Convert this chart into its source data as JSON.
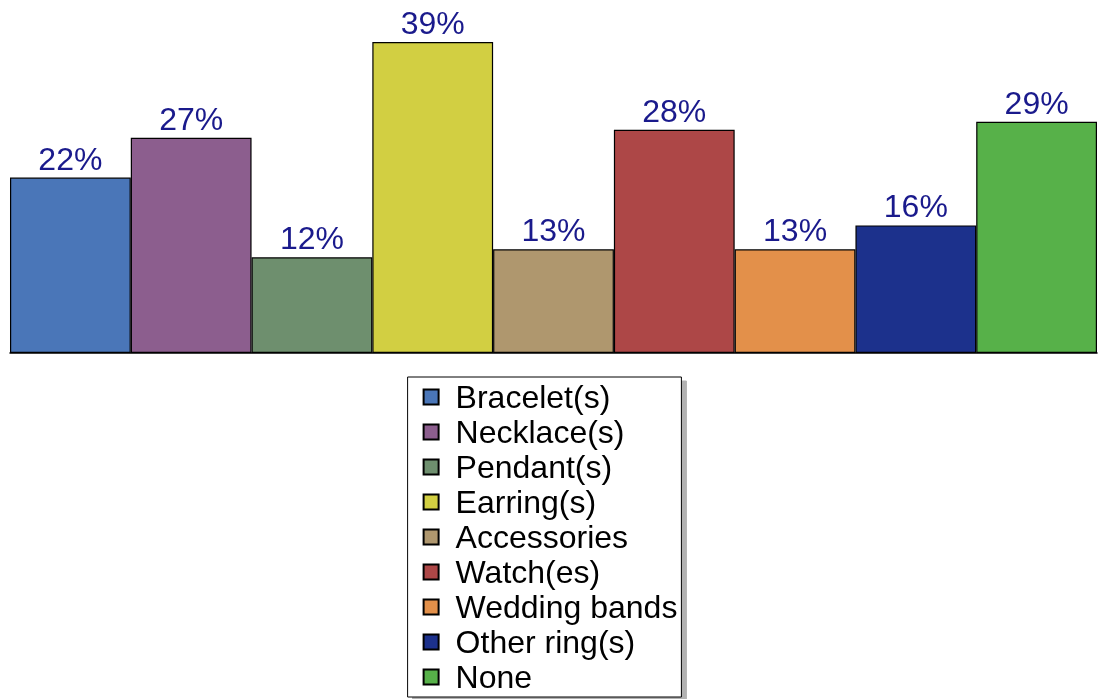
{
  "chart_data": {
    "type": "bar",
    "categories": [
      null
    ],
    "series": [
      {
        "name": "Bracelet(s)",
        "color": "#4a76b8",
        "values": [
          22
        ],
        "value_labels": [
          "22%"
        ]
      },
      {
        "name": "Necklace(s)",
        "color": "#8c5e8e",
        "values": [
          27
        ],
        "value_labels": [
          "27%"
        ]
      },
      {
        "name": "Pendant(s)",
        "color": "#6e8f6e",
        "values": [
          12
        ],
        "value_labels": [
          "12%"
        ]
      },
      {
        "name": "Earring(s)",
        "color": "#d2cf42",
        "values": [
          39
        ],
        "value_labels": [
          "39%"
        ]
      },
      {
        "name": "Accessories",
        "color": "#af976e",
        "values": [
          13
        ],
        "value_labels": [
          "13%"
        ]
      },
      {
        "name": "Watch(es)",
        "color": "#ad4747",
        "values": [
          28
        ],
        "value_labels": [
          "28%"
        ]
      },
      {
        "name": "Wedding bands",
        "color": "#e3904a",
        "values": [
          13
        ],
        "value_labels": [
          "13%"
        ]
      },
      {
        "name": "Other ring(s)",
        "color": "#1c318c",
        "values": [
          16
        ],
        "value_labels": [
          "16%"
        ]
      },
      {
        "name": "None",
        "color": "#57b149",
        "values": [
          29
        ],
        "value_labels": [
          "29%"
        ]
      }
    ],
    "legend": "bottom",
    "tick_labels": false
  }
}
